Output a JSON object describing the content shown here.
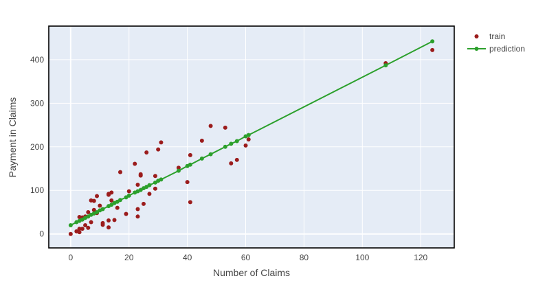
{
  "chart_data": {
    "type": "scatter",
    "title": "",
    "xlabel": "Number of Claims",
    "ylabel": "Payment in Claims",
    "xlim": [
      -7.5,
      131.5
    ],
    "ylim": [
      -32,
      477
    ],
    "x_ticks": [
      0,
      20,
      40,
      60,
      80,
      100,
      120
    ],
    "y_ticks": [
      0,
      100,
      200,
      300,
      400
    ],
    "grid": true,
    "legend_position": "top-right",
    "plot_background": "#e5ecf6",
    "series": [
      {
        "name": "train",
        "mode": "markers",
        "color": "#9b1c1c",
        "points": [
          [
            108,
            392
          ],
          [
            124,
            422
          ],
          [
            61,
            217
          ],
          [
            60,
            203
          ],
          [
            57,
            170
          ],
          [
            55,
            162
          ],
          [
            53,
            244
          ],
          [
            48,
            248
          ],
          [
            45,
            214
          ],
          [
            41,
            181
          ],
          [
            41,
            73
          ],
          [
            40,
            119
          ],
          [
            37,
            152
          ],
          [
            31,
            210
          ],
          [
            30,
            194
          ],
          [
            29,
            133
          ],
          [
            29,
            104
          ],
          [
            26,
            187
          ],
          [
            27,
            92
          ],
          [
            25,
            69
          ],
          [
            24,
            137
          ],
          [
            24,
            134
          ],
          [
            23,
            113
          ],
          [
            23,
            57
          ],
          [
            23,
            40
          ],
          [
            22,
            161
          ],
          [
            20,
            98
          ],
          [
            19,
            46
          ],
          [
            17,
            142
          ],
          [
            16,
            60
          ],
          [
            15,
            32
          ],
          [
            14,
            95
          ],
          [
            14,
            77
          ],
          [
            13,
            92
          ],
          [
            13,
            90
          ],
          [
            13,
            31
          ],
          [
            13,
            15
          ],
          [
            11,
            25
          ],
          [
            11,
            21
          ],
          [
            10,
            65
          ],
          [
            9,
            87
          ],
          [
            9,
            48
          ],
          [
            8,
            76
          ],
          [
            8,
            55
          ],
          [
            7,
            77
          ],
          [
            7,
            27
          ],
          [
            6,
            50
          ],
          [
            6,
            14
          ],
          [
            5,
            40
          ],
          [
            5,
            20
          ],
          [
            4,
            38
          ],
          [
            4,
            12
          ],
          [
            3,
            39
          ],
          [
            3,
            12
          ],
          [
            3,
            4
          ],
          [
            2,
            6
          ],
          [
            0,
            0
          ]
        ]
      },
      {
        "name": "prediction",
        "mode": "lines+markers",
        "color": "#2ca02c",
        "points": [
          [
            0,
            20
          ],
          [
            2,
            27
          ],
          [
            3,
            30
          ],
          [
            4,
            33
          ],
          [
            5,
            37
          ],
          [
            6,
            40
          ],
          [
            7,
            44
          ],
          [
            8,
            47
          ],
          [
            9,
            50
          ],
          [
            10,
            54
          ],
          [
            11,
            57
          ],
          [
            13,
            64
          ],
          [
            14,
            67
          ],
          [
            15,
            71
          ],
          [
            16,
            74
          ],
          [
            17,
            78
          ],
          [
            19,
            84
          ],
          [
            20,
            88
          ],
          [
            22,
            95
          ],
          [
            23,
            98
          ],
          [
            24,
            101
          ],
          [
            25,
            105
          ],
          [
            26,
            108
          ],
          [
            27,
            112
          ],
          [
            29,
            118
          ],
          [
            30,
            122
          ],
          [
            31,
            125
          ],
          [
            37,
            145
          ],
          [
            40,
            156
          ],
          [
            41,
            159
          ],
          [
            45,
            173
          ],
          [
            48,
            183
          ],
          [
            53,
            200
          ],
          [
            55,
            207
          ],
          [
            57,
            213
          ],
          [
            60,
            224
          ],
          [
            61,
            227
          ],
          [
            108,
            387
          ],
          [
            124,
            442
          ]
        ]
      }
    ]
  }
}
